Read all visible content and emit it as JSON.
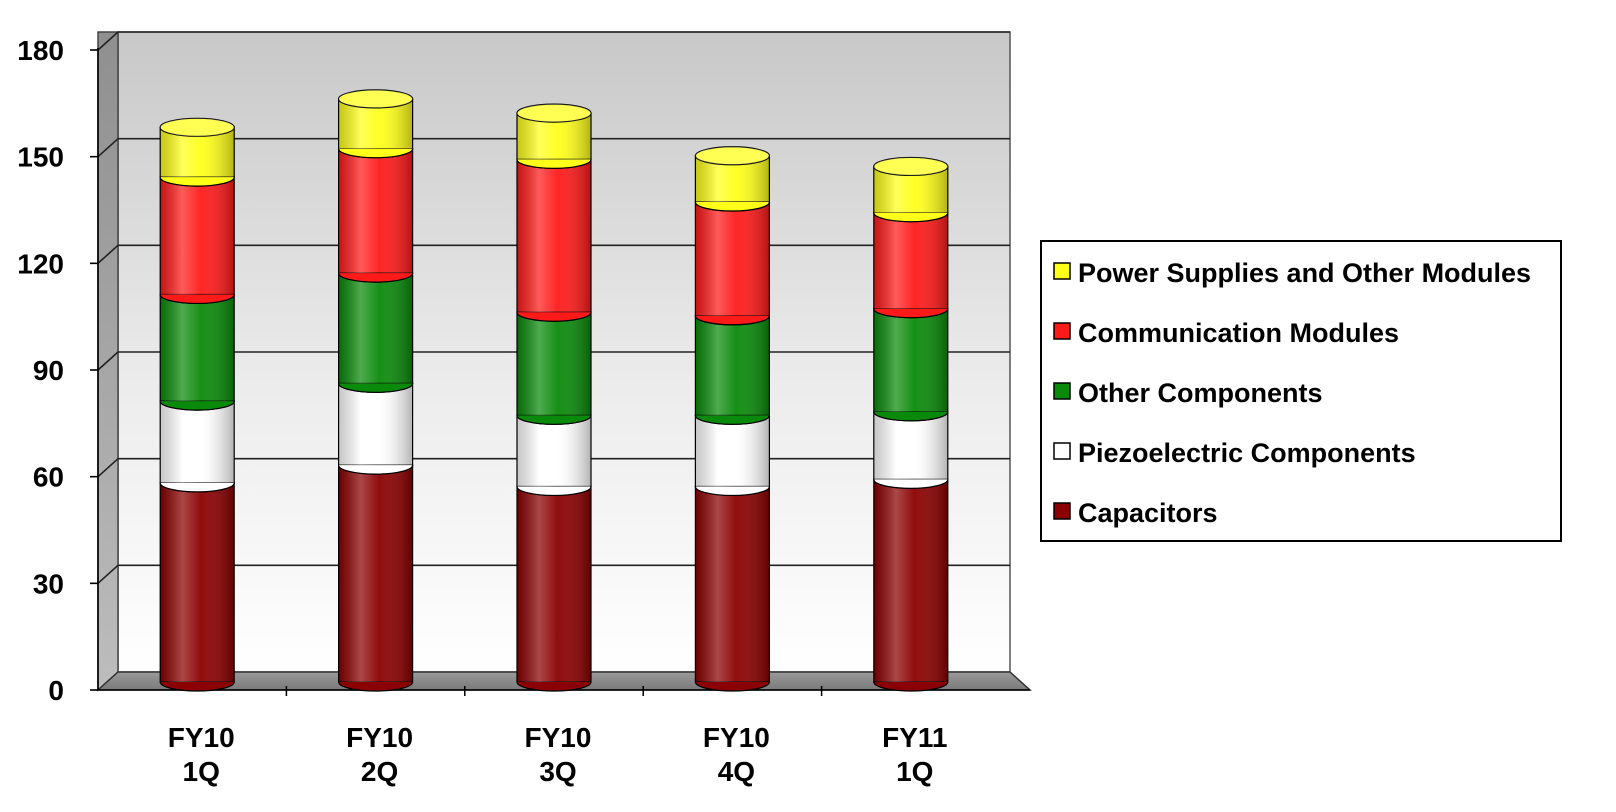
{
  "chart_data": {
    "type": "bar",
    "stacked": true,
    "title": "",
    "xlabel": "",
    "ylabel": "",
    "ylim": [
      0,
      180
    ],
    "yticks": [
      0,
      30,
      60,
      90,
      120,
      150,
      180
    ],
    "grid": true,
    "legend_position": "right",
    "categories": [
      [
        "FY10",
        "1Q"
      ],
      [
        "FY10",
        "2Q"
      ],
      [
        "FY10",
        "3Q"
      ],
      [
        "FY10",
        "4Q"
      ],
      [
        "FY11",
        "1Q"
      ]
    ],
    "series": [
      {
        "name": "Capacitors",
        "color": "#8b0000",
        "values": [
          56,
          61,
          55,
          55,
          57
        ]
      },
      {
        "name": "Piezoelectric Components",
        "color": "#ffffff",
        "values": [
          23,
          23,
          20,
          20,
          19
        ]
      },
      {
        "name": "Other Components",
        "color": "#0a8a0a",
        "values": [
          30,
          31,
          29,
          28,
          29
        ]
      },
      {
        "name": "Communication Modules",
        "color": "#ff1a1a",
        "values": [
          33,
          35,
          43,
          32,
          27
        ]
      },
      {
        "name": "Power Supplies and Other Modules",
        "color": "#ffff1a",
        "values": [
          14,
          14,
          13,
          13,
          13
        ]
      }
    ]
  }
}
